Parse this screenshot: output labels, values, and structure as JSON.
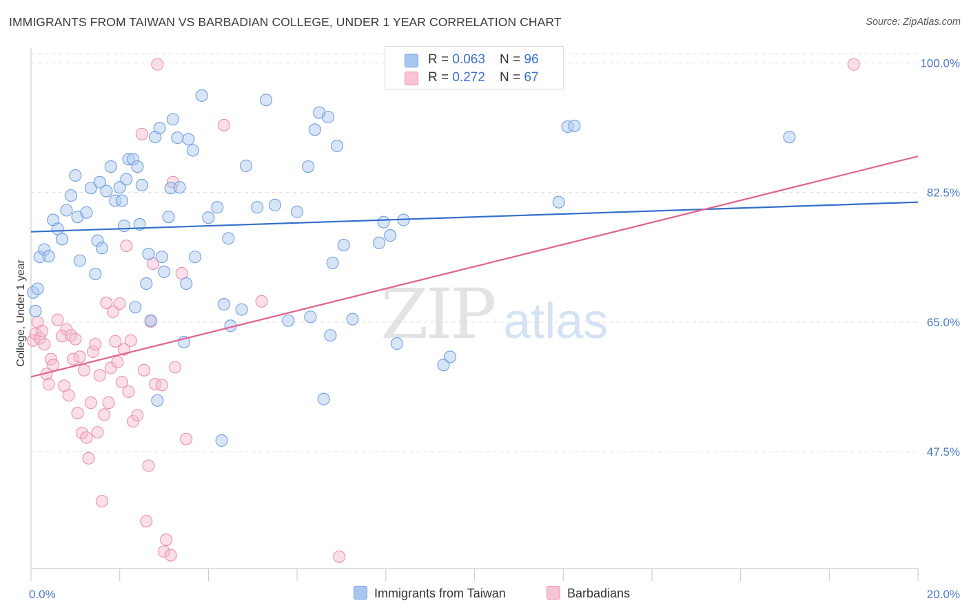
{
  "title": "IMMIGRANTS FROM TAIWAN VS BARBADIAN COLLEGE, UNDER 1 YEAR CORRELATION CHART",
  "source": "Source: ZipAtlas.com",
  "watermark": {
    "zip": "ZIP",
    "atlas": "atlas"
  },
  "legend": {
    "rows": [
      {
        "r_label": "R = ",
        "r_value": "0.063",
        "n_label": "N = ",
        "n_value": "96"
      },
      {
        "r_label": "R = ",
        "r_value": "0.272",
        "n_label": "N = ",
        "n_value": "67"
      }
    ]
  },
  "bottom_legend": [
    {
      "label": "Immigrants from Taiwan"
    },
    {
      "label": "Barbadians"
    }
  ],
  "colors": {
    "blue_fill": "#a9c6ee",
    "blue_stroke": "#6f9ee0",
    "blue_line": "#2f6fcc",
    "pink_fill": "#f6b9cc",
    "pink_stroke": "#ec8fab",
    "pink_line": "#e06590",
    "tick_text": "#4a78c2",
    "grid": "#dcdcdc"
  },
  "chart_data": {
    "type": "scatter",
    "title": "IMMIGRANTS FROM TAIWAN VS BARBADIAN COLLEGE, UNDER 1 YEAR CORRELATION CHART",
    "xlabel": "",
    "ylabel": "College, Under 1 year",
    "xlim": [
      0,
      20
    ],
    "ylim": [
      31.7,
      102
    ],
    "x_tick_labels": [
      {
        "value": 0,
        "label": "0.0%"
      },
      {
        "value": 20,
        "label": "20.0%"
      }
    ],
    "y_tick_labels": [
      {
        "value": 100,
        "label": "100.0%"
      },
      {
        "value": 82.5,
        "label": "82.5%"
      },
      {
        "value": 65,
        "label": "65.0%"
      },
      {
        "value": 47.5,
        "label": "47.5%"
      }
    ],
    "series": [
      {
        "name": "Immigrants from Taiwan",
        "R": 0.063,
        "N": 96,
        "trend": {
          "x": [
            0,
            20
          ],
          "y": [
            77.2,
            81.2
          ]
        },
        "points": [
          [
            0.05,
            69.0
          ],
          [
            0.1,
            66.5
          ],
          [
            0.15,
            69.5
          ],
          [
            0.2,
            73.8
          ],
          [
            0.3,
            74.8
          ],
          [
            0.4,
            73.9
          ],
          [
            0.5,
            78.8
          ],
          [
            0.6,
            77.6
          ],
          [
            0.7,
            76.2
          ],
          [
            0.8,
            80.1
          ],
          [
            0.9,
            82.1
          ],
          [
            1.0,
            84.8
          ],
          [
            1.05,
            79.2
          ],
          [
            1.1,
            73.3
          ],
          [
            1.25,
            79.8
          ],
          [
            1.35,
            83.1
          ],
          [
            1.45,
            71.5
          ],
          [
            1.5,
            76.0
          ],
          [
            1.55,
            83.9
          ],
          [
            1.6,
            75.0
          ],
          [
            1.7,
            82.7
          ],
          [
            1.8,
            86.0
          ],
          [
            1.9,
            81.4
          ],
          [
            2.0,
            83.2
          ],
          [
            2.05,
            81.4
          ],
          [
            2.1,
            78.0
          ],
          [
            2.15,
            84.3
          ],
          [
            2.2,
            87.0
          ],
          [
            2.3,
            87.0
          ],
          [
            2.35,
            67.0
          ],
          [
            2.4,
            86.0
          ],
          [
            2.45,
            78.2
          ],
          [
            2.5,
            83.5
          ],
          [
            2.6,
            70.2
          ],
          [
            2.65,
            74.2
          ],
          [
            2.7,
            65.2
          ],
          [
            2.8,
            90.0
          ],
          [
            2.85,
            54.4
          ],
          [
            2.9,
            91.2
          ],
          [
            2.95,
            73.8
          ],
          [
            3.0,
            71.8
          ],
          [
            3.1,
            79.2
          ],
          [
            3.15,
            83.1
          ],
          [
            3.2,
            92.4
          ],
          [
            3.3,
            89.9
          ],
          [
            3.35,
            83.2
          ],
          [
            3.45,
            62.3
          ],
          [
            3.5,
            70.2
          ],
          [
            3.55,
            89.7
          ],
          [
            3.65,
            88.2
          ],
          [
            3.7,
            73.8
          ],
          [
            3.85,
            95.6
          ],
          [
            4.0,
            79.1
          ],
          [
            4.2,
            80.5
          ],
          [
            4.3,
            49.0
          ],
          [
            4.35,
            67.4
          ],
          [
            4.45,
            76.3
          ],
          [
            4.5,
            64.5
          ],
          [
            4.75,
            66.7
          ],
          [
            4.85,
            86.1
          ],
          [
            5.1,
            80.5
          ],
          [
            5.3,
            95.0
          ],
          [
            5.5,
            80.8
          ],
          [
            5.8,
            65.2
          ],
          [
            6.0,
            79.9
          ],
          [
            6.25,
            86.0
          ],
          [
            6.3,
            65.7
          ],
          [
            6.4,
            91.0
          ],
          [
            6.5,
            93.3
          ],
          [
            6.6,
            54.6
          ],
          [
            6.7,
            92.7
          ],
          [
            6.75,
            63.2
          ],
          [
            6.8,
            73.0
          ],
          [
            6.9,
            88.8
          ],
          [
            7.05,
            75.4
          ],
          [
            7.25,
            65.4
          ],
          [
            7.85,
            75.7
          ],
          [
            7.95,
            78.5
          ],
          [
            8.1,
            76.7
          ],
          [
            8.25,
            62.1
          ],
          [
            8.4,
            78.8
          ],
          [
            9.3,
            59.2
          ],
          [
            9.45,
            60.3
          ],
          [
            11.9,
            81.2
          ],
          [
            12.1,
            91.4
          ],
          [
            12.25,
            91.5
          ],
          [
            17.1,
            90.0
          ]
        ]
      },
      {
        "name": "Barbadians",
        "R": 0.272,
        "N": 67,
        "trend": {
          "x": [
            0,
            20
          ],
          "y": [
            57.6,
            87.4
          ]
        },
        "points": [
          [
            0.05,
            62.5
          ],
          [
            0.1,
            63.4
          ],
          [
            0.15,
            65.0
          ],
          [
            0.2,
            62.8
          ],
          [
            0.25,
            63.8
          ],
          [
            0.3,
            62.0
          ],
          [
            0.35,
            58.0
          ],
          [
            0.4,
            56.6
          ],
          [
            0.45,
            60.0
          ],
          [
            0.5,
            59.2
          ],
          [
            0.6,
            65.3
          ],
          [
            0.7,
            63.1
          ],
          [
            0.75,
            56.4
          ],
          [
            0.8,
            64.0
          ],
          [
            0.85,
            55.1
          ],
          [
            0.9,
            63.2
          ],
          [
            0.95,
            60.0
          ],
          [
            1.0,
            62.7
          ],
          [
            1.05,
            52.7
          ],
          [
            1.1,
            60.3
          ],
          [
            1.15,
            50.0
          ],
          [
            1.2,
            58.5
          ],
          [
            1.25,
            49.4
          ],
          [
            1.3,
            46.6
          ],
          [
            1.35,
            54.1
          ],
          [
            1.4,
            61.0
          ],
          [
            1.45,
            62.0
          ],
          [
            1.5,
            50.1
          ],
          [
            1.55,
            57.8
          ],
          [
            1.6,
            40.8
          ],
          [
            1.65,
            52.5
          ],
          [
            1.7,
            67.6
          ],
          [
            1.75,
            54.1
          ],
          [
            1.8,
            58.8
          ],
          [
            1.85,
            66.4
          ],
          [
            1.9,
            62.4
          ],
          [
            1.95,
            59.6
          ],
          [
            2.0,
            67.5
          ],
          [
            2.05,
            56.9
          ],
          [
            2.1,
            61.3
          ],
          [
            2.15,
            75.3
          ],
          [
            2.2,
            55.6
          ],
          [
            2.25,
            62.5
          ],
          [
            2.3,
            51.6
          ],
          [
            2.4,
            52.4
          ],
          [
            2.5,
            90.4
          ],
          [
            2.55,
            58.5
          ],
          [
            2.6,
            38.1
          ],
          [
            2.65,
            45.6
          ],
          [
            2.7,
            65.1
          ],
          [
            2.75,
            72.9
          ],
          [
            2.8,
            56.6
          ],
          [
            2.85,
            99.8
          ],
          [
            2.95,
            56.5
          ],
          [
            3.0,
            34.0
          ],
          [
            3.05,
            35.6
          ],
          [
            3.15,
            33.5
          ],
          [
            3.2,
            83.9
          ],
          [
            3.25,
            58.9
          ],
          [
            3.4,
            71.6
          ],
          [
            3.5,
            49.2
          ],
          [
            4.35,
            91.6
          ],
          [
            5.2,
            67.8
          ],
          [
            6.95,
            33.3
          ],
          [
            18.55,
            99.8
          ]
        ]
      }
    ]
  }
}
